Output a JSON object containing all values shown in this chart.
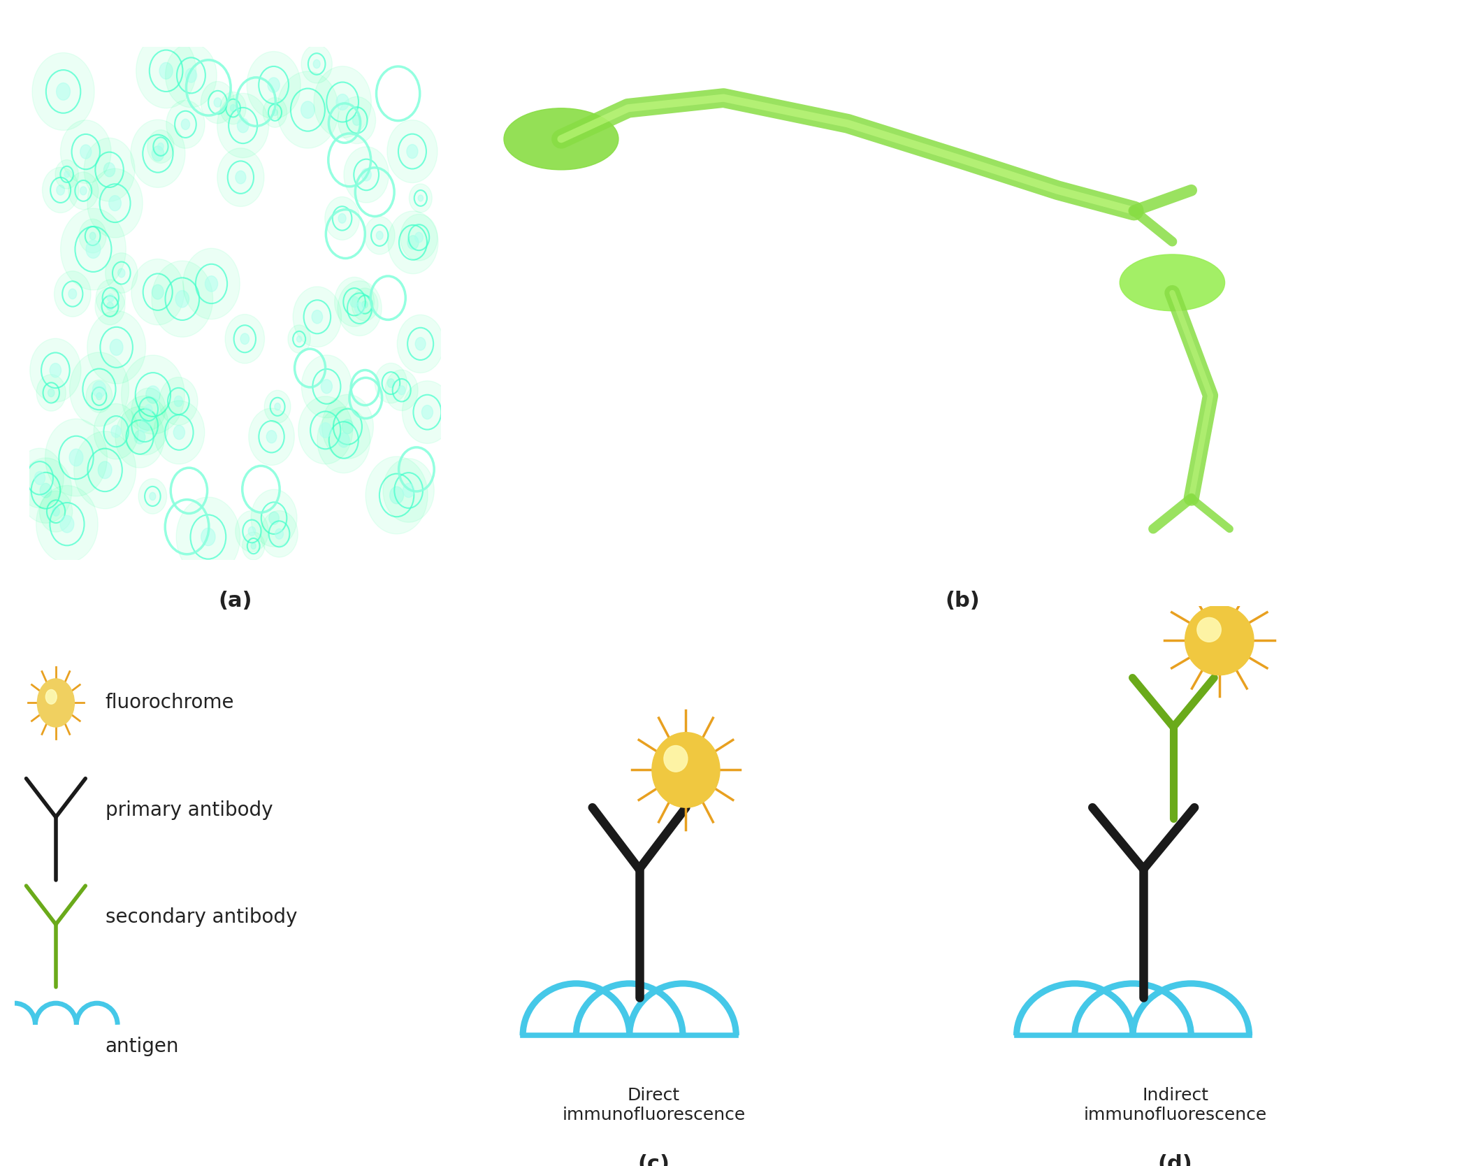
{
  "fig_width": 21.02,
  "fig_height": 16.68,
  "background_color": "#ffffff",
  "label_a": "(a)",
  "label_b": "(b)",
  "label_c": "(c)",
  "label_d": "(d)",
  "label_fontsize": 22,
  "legend_items": [
    "fluorochrome",
    "primary antibody",
    "secondary antibody",
    "antigen"
  ],
  "direct_label": "Direct\nimmunofluorescence",
  "indirect_label": "Indirect\nimmunofluorescence",
  "antibody_color_primary": "#1a1a1a",
  "antibody_color_secondary": "#6aaa1a",
  "antigen_color": "#45c8e8",
  "fluorochrome_color_outer": "#e8a020",
  "fluorochrome_color_inner": "#f0d060",
  "text_color": "#222222",
  "diagram_text_fontsize": 18,
  "legend_fontsize": 20
}
